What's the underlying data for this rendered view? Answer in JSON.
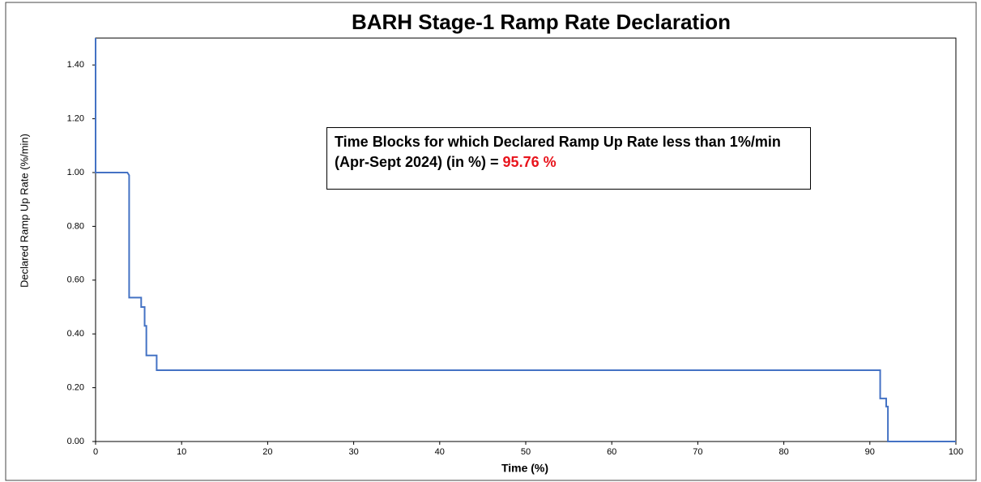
{
  "chart_data": {
    "type": "line",
    "title": "BARH Stage-1 Ramp Rate Declaration",
    "x_label": "Time (%)",
    "y_label": "Declared Ramp Up Rate (%/min)",
    "annotation": {
      "text": "Time Blocks for which Declared Ramp Up Rate less than 1%/min (Apr-Sept 2024) (in %) = ",
      "highlight": "95.76 %"
    },
    "x": [
      0,
      0,
      3.7,
      3.9,
      3.9,
      5.3,
      5.3,
      5.7,
      5.7,
      5.9,
      5.9,
      7.1,
      7.1,
      91.2,
      91.2,
      91.9,
      91.9,
      92.1,
      92.1,
      100
    ],
    "series": [
      {
        "color": "#4472c4",
        "values": [
          1.5,
          1.0,
          1.0,
          0.99,
          0.535,
          0.535,
          0.5,
          0.5,
          0.43,
          0.43,
          0.32,
          0.32,
          0.265,
          0.265,
          0.16,
          0.16,
          0.13,
          0.13,
          0,
          0
        ]
      }
    ],
    "xlim": [
      0,
      100
    ],
    "xticks": [
      0,
      10,
      20,
      30,
      40,
      50,
      60,
      70,
      80,
      90,
      100
    ],
    "ylim": [
      0,
      1.5
    ],
    "yticks": [
      {
        "value": 0,
        "label": "0.00"
      },
      {
        "value": 0.2,
        "label": "0.20"
      },
      {
        "value": 0.4,
        "label": "0.40"
      },
      {
        "value": 0.6,
        "label": "0.60"
      },
      {
        "value": 0.8,
        "label": "0.80"
      },
      {
        "value": 1.0,
        "label": "1.00"
      },
      {
        "value": 1.2,
        "label": "1.20"
      },
      {
        "value": 1.4,
        "label": "1.40"
      }
    ]
  }
}
